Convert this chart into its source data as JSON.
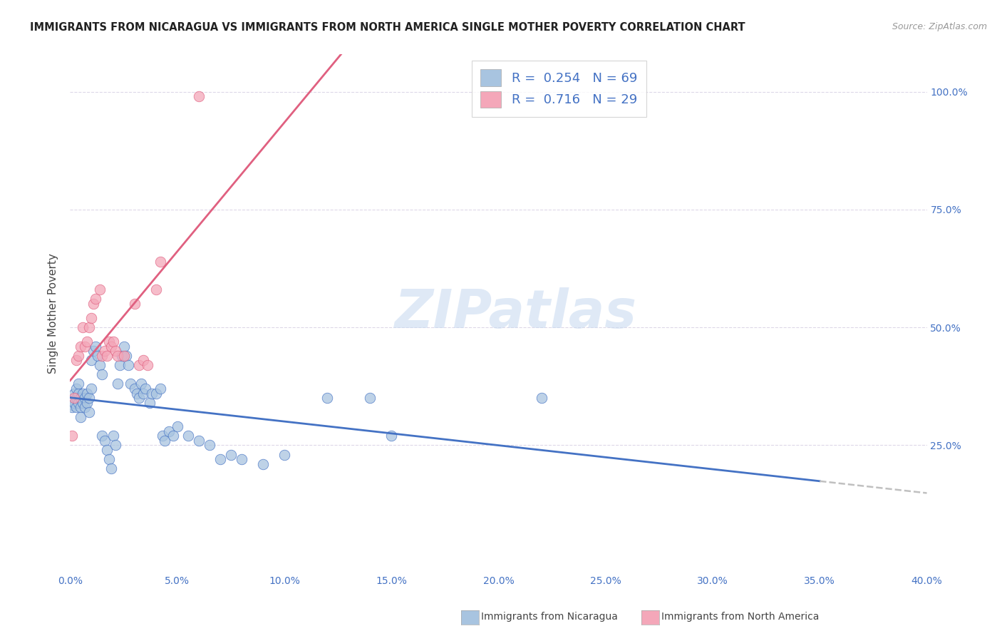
{
  "title": "IMMIGRANTS FROM NICARAGUA VS IMMIGRANTS FROM NORTH AMERICA SINGLE MOTHER POVERTY CORRELATION CHART",
  "source": "Source: ZipAtlas.com",
  "ylabel": "Single Mother Poverty",
  "legend_r1": "R =  0.254",
  "legend_n1": "N = 69",
  "legend_r2": "R =  0.716",
  "legend_n2": "N = 29",
  "color_nicaragua": "#a8c4e0",
  "color_north_america": "#f4a7b9",
  "trendline_nicaragua": "#4472c4",
  "trendline_north_america": "#e06080",
  "trendline_extension_color": "#c0c0c0",
  "watermark": "ZIPatlas",
  "scatter_nicaragua": [
    [
      0.001,
      0.335
    ],
    [
      0.001,
      0.33
    ],
    [
      0.002,
      0.34
    ],
    [
      0.002,
      0.36
    ],
    [
      0.003,
      0.33
    ],
    [
      0.003,
      0.37
    ],
    [
      0.003,
      0.35
    ],
    [
      0.004,
      0.34
    ],
    [
      0.004,
      0.36
    ],
    [
      0.004,
      0.38
    ],
    [
      0.005,
      0.35
    ],
    [
      0.005,
      0.33
    ],
    [
      0.005,
      0.31
    ],
    [
      0.006,
      0.36
    ],
    [
      0.006,
      0.34
    ],
    [
      0.007,
      0.35
    ],
    [
      0.007,
      0.33
    ],
    [
      0.008,
      0.36
    ],
    [
      0.008,
      0.34
    ],
    [
      0.009,
      0.35
    ],
    [
      0.009,
      0.32
    ],
    [
      0.01,
      0.37
    ],
    [
      0.01,
      0.43
    ],
    [
      0.011,
      0.45
    ],
    [
      0.012,
      0.46
    ],
    [
      0.013,
      0.44
    ],
    [
      0.014,
      0.42
    ],
    [
      0.015,
      0.4
    ],
    [
      0.015,
      0.27
    ],
    [
      0.016,
      0.26
    ],
    [
      0.017,
      0.24
    ],
    [
      0.018,
      0.22
    ],
    [
      0.019,
      0.2
    ],
    [
      0.02,
      0.27
    ],
    [
      0.021,
      0.25
    ],
    [
      0.022,
      0.38
    ],
    [
      0.023,
      0.42
    ],
    [
      0.024,
      0.44
    ],
    [
      0.025,
      0.46
    ],
    [
      0.026,
      0.44
    ],
    [
      0.027,
      0.42
    ],
    [
      0.028,
      0.38
    ],
    [
      0.03,
      0.37
    ],
    [
      0.031,
      0.36
    ],
    [
      0.032,
      0.35
    ],
    [
      0.033,
      0.38
    ],
    [
      0.034,
      0.36
    ],
    [
      0.035,
      0.37
    ],
    [
      0.037,
      0.34
    ],
    [
      0.038,
      0.36
    ],
    [
      0.04,
      0.36
    ],
    [
      0.042,
      0.37
    ],
    [
      0.043,
      0.27
    ],
    [
      0.044,
      0.26
    ],
    [
      0.046,
      0.28
    ],
    [
      0.048,
      0.27
    ],
    [
      0.05,
      0.29
    ],
    [
      0.055,
      0.27
    ],
    [
      0.06,
      0.26
    ],
    [
      0.065,
      0.25
    ],
    [
      0.07,
      0.22
    ],
    [
      0.075,
      0.23
    ],
    [
      0.08,
      0.22
    ],
    [
      0.09,
      0.21
    ],
    [
      0.1,
      0.23
    ],
    [
      0.12,
      0.35
    ],
    [
      0.14,
      0.35
    ],
    [
      0.15,
      0.27
    ],
    [
      0.22,
      0.35
    ]
  ],
  "scatter_north_america": [
    [
      0.001,
      0.27
    ],
    [
      0.002,
      0.35
    ],
    [
      0.003,
      0.43
    ],
    [
      0.004,
      0.44
    ],
    [
      0.005,
      0.46
    ],
    [
      0.006,
      0.5
    ],
    [
      0.007,
      0.46
    ],
    [
      0.008,
      0.47
    ],
    [
      0.009,
      0.5
    ],
    [
      0.01,
      0.52
    ],
    [
      0.011,
      0.55
    ],
    [
      0.012,
      0.56
    ],
    [
      0.014,
      0.58
    ],
    [
      0.015,
      0.44
    ],
    [
      0.016,
      0.45
    ],
    [
      0.017,
      0.44
    ],
    [
      0.018,
      0.47
    ],
    [
      0.019,
      0.46
    ],
    [
      0.02,
      0.47
    ],
    [
      0.021,
      0.45
    ],
    [
      0.022,
      0.44
    ],
    [
      0.025,
      0.44
    ],
    [
      0.03,
      0.55
    ],
    [
      0.032,
      0.42
    ],
    [
      0.034,
      0.43
    ],
    [
      0.036,
      0.42
    ],
    [
      0.04,
      0.58
    ],
    [
      0.042,
      0.64
    ],
    [
      0.06,
      0.99
    ]
  ],
  "xlim": [
    0.0,
    0.4
  ],
  "ylim": [
    -0.02,
    1.08
  ],
  "x_ticks": [
    0.0,
    0.05,
    0.1,
    0.15,
    0.2,
    0.25,
    0.3,
    0.35,
    0.4
  ],
  "y_ticks": [
    0.25,
    0.5,
    0.75,
    1.0
  ],
  "background_color": "#ffffff",
  "grid_color": "#ddd8e8"
}
